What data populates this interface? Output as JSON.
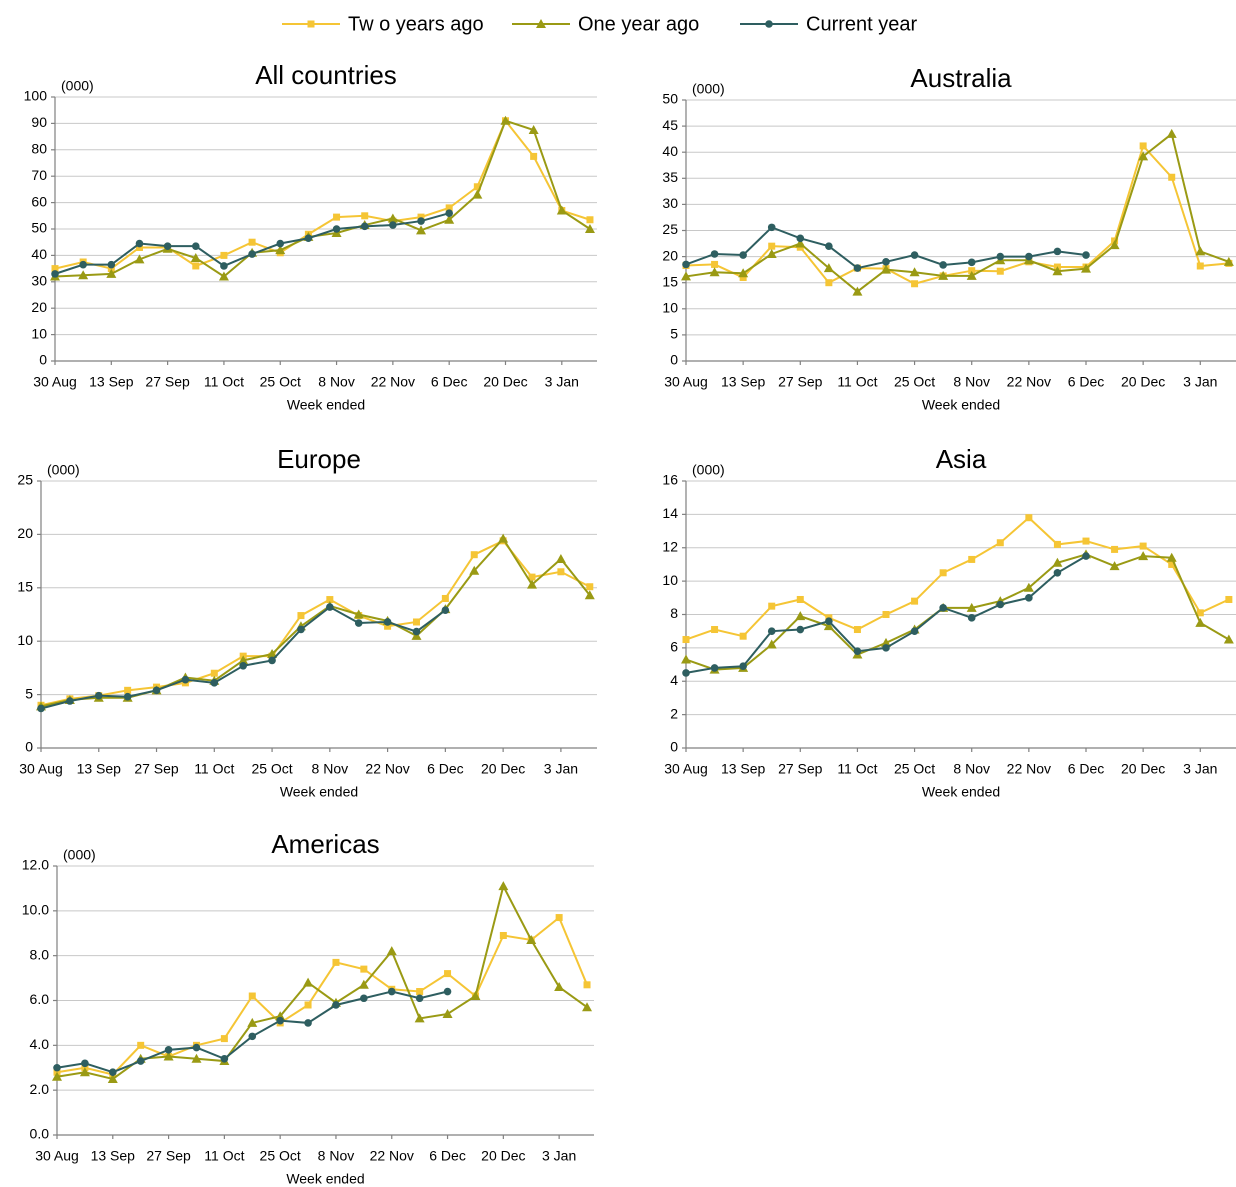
{
  "legend": {
    "series": [
      {
        "name": "Tw o years ago",
        "color": "#f5c535",
        "marker": "square"
      },
      {
        "name": "One year ago",
        "color": "#9a9a14",
        "marker": "triangle"
      },
      {
        "name": "Current year",
        "color": "#2e5e60",
        "marker": "circle"
      }
    ]
  },
  "chart_data": [
    {
      "type": "line",
      "title": "All countries",
      "y_unit_label": "(000)",
      "x_label": "Week ended",
      "categories": [
        "30 Aug",
        null,
        "13 Sep",
        null,
        "27 Sep",
        null,
        "11 Oct",
        null,
        "25 Oct",
        null,
        "8 Nov",
        null,
        "22 Nov",
        null,
        "6 Dec",
        null,
        "20 Dec",
        null,
        "3 Jan",
        null
      ],
      "ylim": [
        0,
        100
      ],
      "yticks": [
        0,
        10,
        20,
        30,
        40,
        50,
        60,
        70,
        80,
        90,
        100
      ],
      "grid": true,
      "series": [
        {
          "values": [
            35,
            37.5,
            35,
            43,
            43,
            36,
            40,
            45,
            41,
            48,
            54.5,
            55,
            53,
            54.5,
            58,
            66,
            91,
            77.5,
            57,
            53.5
          ]
        },
        {
          "values": [
            32,
            32.5,
            33,
            38.5,
            42.5,
            39,
            32,
            41,
            42,
            47,
            48.5,
            51.5,
            54,
            49.5,
            53.5,
            63,
            91,
            87.5,
            57,
            50
          ]
        },
        {
          "values": [
            33,
            36.5,
            36.5,
            44.5,
            43.5,
            43.5,
            36,
            40.5,
            44.5,
            46.5,
            50,
            51,
            51.5,
            53,
            56,
            null,
            null,
            null,
            null,
            null
          ]
        }
      ]
    },
    {
      "type": "line",
      "title": "Australia",
      "y_unit_label": "(000)",
      "x_label": "Week ended",
      "categories": [
        "30 Aug",
        null,
        "13 Sep",
        null,
        "27 Sep",
        null,
        "11 Oct",
        null,
        "25 Oct",
        null,
        "8 Nov",
        null,
        "22 Nov",
        null,
        "6 Dec",
        null,
        "20 Dec",
        null,
        "3 Jan",
        null
      ],
      "ylim": [
        0,
        50
      ],
      "yticks": [
        0,
        5,
        10,
        15,
        20,
        25,
        30,
        35,
        40,
        45,
        50
      ],
      "grid": true,
      "series": [
        {
          "values": [
            18.3,
            18.5,
            16,
            22,
            21.8,
            15,
            17.8,
            17.7,
            14.8,
            16.3,
            17.3,
            17.2,
            19,
            18,
            18,
            23,
            41.2,
            35.2,
            18.2,
            18.7
          ]
        },
        {
          "values": [
            16.2,
            17,
            16.8,
            20.5,
            22.5,
            17.8,
            13.3,
            17.5,
            17,
            16.3,
            16.3,
            19.3,
            19.3,
            17.2,
            17.7,
            22.2,
            39.2,
            43.5,
            21,
            19
          ]
        },
        {
          "values": [
            18.5,
            20.5,
            20.3,
            25.6,
            23.5,
            22,
            17.8,
            19,
            20.3,
            18.4,
            18.9,
            20,
            20,
            21,
            20.3,
            null,
            null,
            null,
            null,
            null
          ]
        }
      ]
    },
    {
      "type": "line",
      "title": "Europe",
      "y_unit_label": "(000)",
      "x_label": "Week ended",
      "categories": [
        "30 Aug",
        null,
        "13 Sep",
        null,
        "27 Sep",
        null,
        "11 Oct",
        null,
        "25 Oct",
        null,
        "8 Nov",
        null,
        "22 Nov",
        null,
        "6 Dec",
        null,
        "20 Dec",
        null,
        "3 Jan",
        null
      ],
      "ylim": [
        0,
        25
      ],
      "yticks": [
        0,
        5,
        10,
        15,
        20,
        25
      ],
      "grid": true,
      "series": [
        {
          "values": [
            4,
            4.6,
            4.9,
            5.4,
            5.7,
            6.1,
            7,
            8.6,
            8.6,
            12.4,
            13.9,
            12.4,
            11.4,
            11.8,
            14,
            18.1,
            19.4,
            16,
            16.5,
            15.1
          ]
        },
        {
          "values": [
            3.9,
            4.5,
            4.7,
            4.7,
            5.4,
            6.6,
            6.3,
            8.2,
            8.8,
            11.4,
            13.3,
            12.5,
            11.9,
            10.5,
            13,
            16.6,
            19.6,
            15.3,
            17.7,
            14.3
          ]
        },
        {
          "values": [
            3.7,
            4.4,
            4.9,
            4.8,
            5.4,
            6.4,
            6.1,
            7.7,
            8.2,
            11.1,
            13.2,
            11.7,
            11.8,
            10.9,
            12.9,
            null,
            null,
            null,
            null,
            null
          ]
        }
      ]
    },
    {
      "type": "line",
      "title": "Asia",
      "y_unit_label": "(000)",
      "x_label": "Week ended",
      "categories": [
        "30 Aug",
        null,
        "13 Sep",
        null,
        "27 Sep",
        null,
        "11 Oct",
        null,
        "25 Oct",
        null,
        "8 Nov",
        null,
        "22 Nov",
        null,
        "6 Dec",
        null,
        "20 Dec",
        null,
        "3 Jan",
        null
      ],
      "ylim": [
        0,
        16
      ],
      "yticks": [
        0,
        2,
        4,
        6,
        8,
        10,
        12,
        14,
        16
      ],
      "grid": true,
      "series": [
        {
          "values": [
            6.5,
            7.1,
            6.7,
            8.5,
            8.9,
            7.8,
            7.1,
            8,
            8.8,
            10.5,
            11.3,
            12.3,
            13.8,
            12.2,
            12.4,
            11.9,
            12.1,
            11,
            8.1,
            8.9
          ]
        },
        {
          "values": [
            5.3,
            4.7,
            4.8,
            6.2,
            7.9,
            7.3,
            5.6,
            6.3,
            7.1,
            8.4,
            8.4,
            8.8,
            9.6,
            11.1,
            11.6,
            10.9,
            11.5,
            11.4,
            7.5,
            6.5
          ]
        },
        {
          "values": [
            4.5,
            4.8,
            4.9,
            7,
            7.1,
            7.6,
            5.8,
            6,
            7,
            8.4,
            7.8,
            8.6,
            9,
            10.5,
            11.5,
            null,
            null,
            null,
            null,
            null
          ]
        }
      ]
    },
    {
      "type": "line",
      "title": "Americas",
      "y_unit_label": "(000)",
      "x_label": "Week ended",
      "categories": [
        "30 Aug",
        null,
        "13 Sep",
        null,
        "27 Sep",
        null,
        "11 Oct",
        null,
        "25 Oct",
        null,
        "8 Nov",
        null,
        "22 Nov",
        null,
        "6 Dec",
        null,
        "20 Dec",
        null,
        "3 Jan",
        null
      ],
      "ylim": [
        0,
        12
      ],
      "yticks": [
        {
          "value": 0,
          "label": "0.0"
        },
        {
          "value": 2,
          "label": "2.0"
        },
        {
          "value": 4,
          "label": "4.0"
        },
        {
          "value": 6,
          "label": "6.0"
        },
        {
          "value": 8,
          "label": "8.0"
        },
        {
          "value": 10,
          "label": "10.0"
        },
        {
          "value": 12,
          "label": "12.0"
        }
      ],
      "grid": true,
      "series": [
        {
          "values": [
            2.8,
            3,
            2.7,
            4,
            3.5,
            4,
            4.3,
            6.2,
            5,
            5.8,
            7.7,
            7.4,
            6.5,
            6.4,
            7.2,
            6.2,
            8.9,
            8.7,
            9.7,
            6.7
          ]
        },
        {
          "values": [
            2.6,
            2.8,
            2.5,
            3.4,
            3.5,
            3.4,
            3.3,
            5,
            5.3,
            6.8,
            5.9,
            6.7,
            8.2,
            5.2,
            5.4,
            6.2,
            11.1,
            8.7,
            6.6,
            5.7
          ]
        },
        {
          "values": [
            3,
            3.2,
            2.8,
            3.3,
            3.8,
            3.9,
            3.4,
            4.4,
            5.1,
            5,
            5.8,
            6.1,
            6.4,
            6.1,
            6.4,
            null,
            null,
            null,
            null,
            null
          ]
        }
      ]
    }
  ]
}
